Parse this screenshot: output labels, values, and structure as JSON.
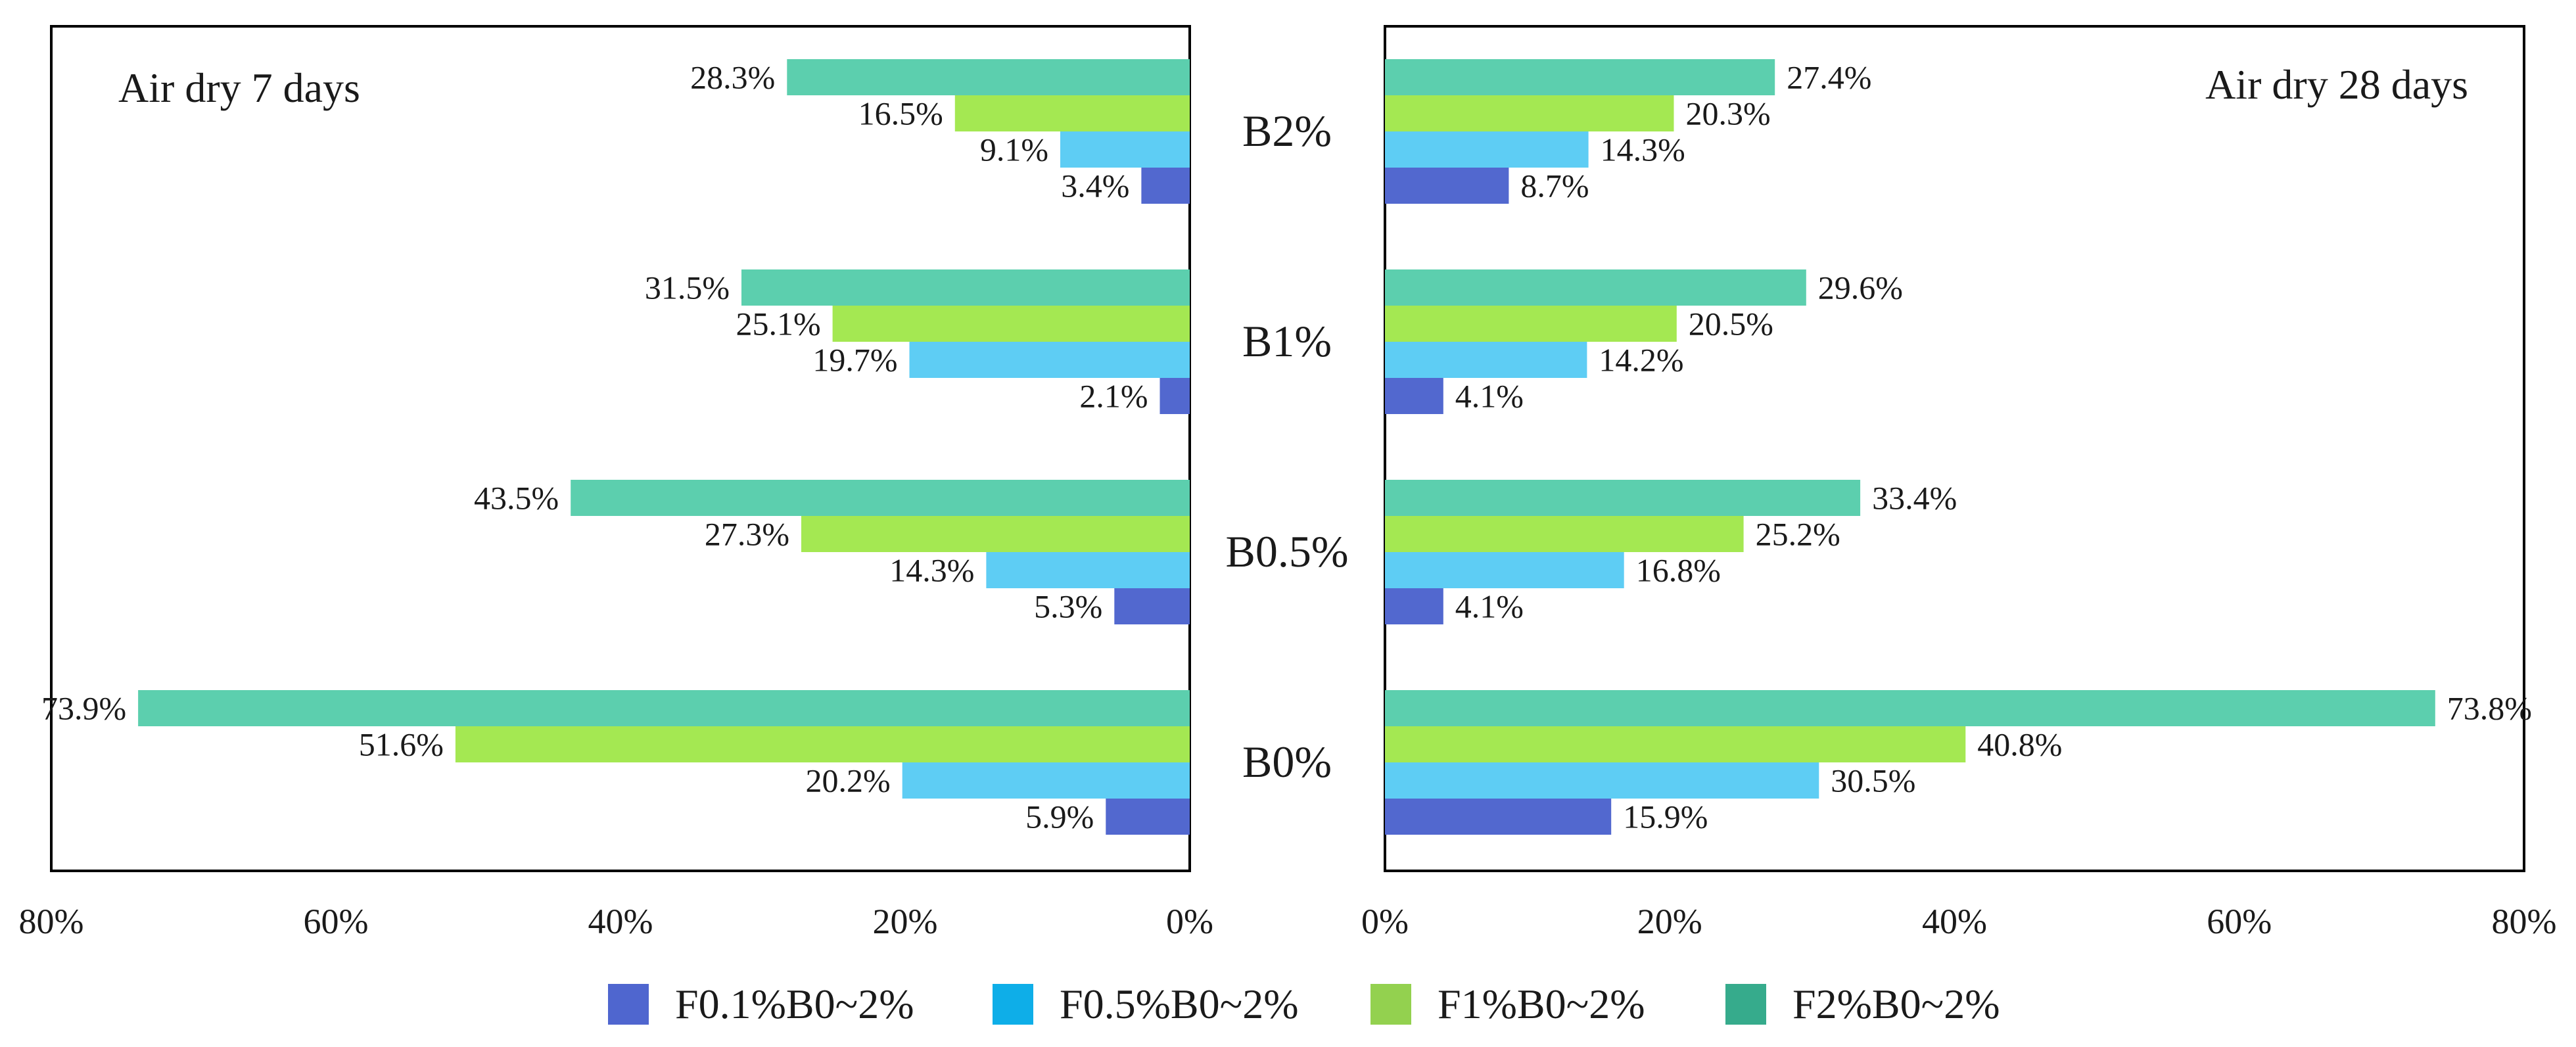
{
  "chart_data": {
    "type": "bar",
    "orientation": "horizontal",
    "categories": [
      "B2%",
      "B1%",
      "B0.5%",
      "B0%"
    ],
    "xlim": [
      0,
      80
    ],
    "x_ticks": [
      "0%",
      "20%",
      "40%",
      "60%",
      "80%"
    ],
    "x_ticks_left": [
      "80%",
      "60%",
      "40%",
      "20%",
      "0%"
    ],
    "grid": false,
    "legend_position": "bottom",
    "legend": [
      {
        "name": "F0.1%B0~2%",
        "color": "#4f66cf"
      },
      {
        "name": "F0.5%B0~2%",
        "color": "#0eaee8"
      },
      {
        "name": "F1%B0~2%",
        "color": "#93d14f"
      },
      {
        "name": "F2%B0~2%",
        "color": "#36ab8c"
      }
    ],
    "bar_colors": [
      "#5ccfae",
      "#a4e852",
      "#5ecdf4",
      "#5268cf"
    ],
    "panels": [
      {
        "title": "Air dry 7 days",
        "direction": "left",
        "series": [
          {
            "values": [
              28.3,
              31.5,
              43.5,
              73.9
            ],
            "labels": [
              "28.3%",
              "31.5%",
              "43.5%",
              "73.9%"
            ]
          },
          {
            "values": [
              16.5,
              25.1,
              27.3,
              51.6
            ],
            "labels": [
              "16.5%",
              "25.1%",
              "27.3%",
              "51.6%"
            ]
          },
          {
            "values": [
              9.1,
              19.7,
              14.3,
              20.2
            ],
            "labels": [
              "9.1%",
              "19.7%",
              "14.3%",
              "20.2%"
            ]
          },
          {
            "values": [
              3.4,
              2.1,
              5.3,
              5.9
            ],
            "labels": [
              "3.4%",
              "2.1%",
              "5.3%",
              "5.9%"
            ]
          }
        ]
      },
      {
        "title": "Air dry 28 days",
        "direction": "right",
        "series": [
          {
            "values": [
              27.4,
              29.6,
              33.4,
              73.8
            ],
            "labels": [
              "27.4%",
              "29.6%",
              "33.4%",
              "73.8%"
            ]
          },
          {
            "values": [
              20.3,
              20.5,
              25.2,
              40.8
            ],
            "labels": [
              "20.3%",
              "20.5%",
              "25.2%",
              "40.8%"
            ]
          },
          {
            "values": [
              14.3,
              14.2,
              16.8,
              30.5
            ],
            "labels": [
              "14.3%",
              "14.2%",
              "16.8%",
              "30.5%"
            ]
          },
          {
            "values": [
              8.7,
              4.1,
              4.1,
              15.9
            ],
            "labels": [
              "8.7%",
              "4.1%",
              "4.1%",
              "15.9%"
            ]
          }
        ]
      }
    ]
  }
}
